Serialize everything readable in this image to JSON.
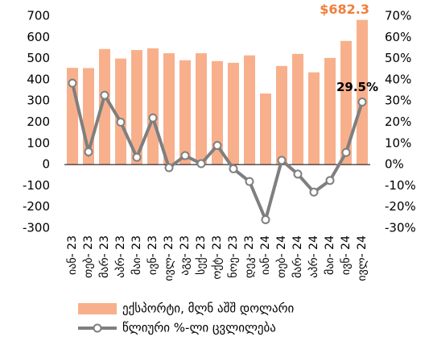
{
  "chart_data": {
    "type": "bar-line",
    "categories": [
      "იან- 23",
      "თებ- 23",
      "მარ- 23",
      "აპრ- 23",
      "მაი- 23",
      "ივნ- 23",
      "ივლ- 23",
      "აგვ- 23",
      "სექ- 23",
      "ოქტ- 23",
      "ნოე- 23",
      "დეკ- 23",
      "იან- 24",
      "თებ- 24",
      "მარ- 24",
      "აპრ- 24",
      "მაი- 24",
      "ივნ- 24",
      "ივლ- 24"
    ],
    "series": [
      {
        "name": "ექსპორტი, მლნ აშშ დოლარი",
        "type": "bar",
        "color": "#f8b08c",
        "values": [
          456,
          455,
          545,
          500,
          540,
          548,
          525,
          492,
          525,
          488,
          480,
          515,
          335,
          465,
          522,
          435,
          503,
          583,
          682.3
        ],
        "value_labels": [
          null,
          null,
          null,
          null,
          null,
          null,
          null,
          null,
          null,
          null,
          null,
          null,
          null,
          null,
          null,
          null,
          null,
          null,
          "$682.3"
        ],
        "label_color": "#f07f3c"
      },
      {
        "name": "წლიური %-ლი ცვლილება",
        "type": "line",
        "axis": "y2",
        "color": "#7f7f7f",
        "values": [
          38.4,
          6,
          32.7,
          20,
          3.4,
          22,
          -1.5,
          4.2,
          0.4,
          9,
          -2,
          -8,
          -26,
          2,
          -4.5,
          -13,
          -7.5,
          5.7,
          29.5
        ],
        "value_labels": [
          null,
          null,
          null,
          null,
          null,
          null,
          null,
          null,
          null,
          null,
          null,
          null,
          null,
          null,
          null,
          null,
          null,
          null,
          "29.5%"
        ],
        "label_color": "#000000"
      }
    ],
    "ylim": [
      -300,
      700
    ],
    "yticks": [
      -300,
      -200,
      -100,
      0,
      100,
      200,
      300,
      400,
      500,
      600,
      700
    ],
    "y2lim": [
      -30,
      70
    ],
    "y2ticks": [
      {
        "value": -30,
        "label": "-30%"
      },
      {
        "value": -20,
        "label": "-20%"
      },
      {
        "value": -10,
        "label": "-10%"
      },
      {
        "value": 0,
        "label": "0%"
      },
      {
        "value": 10,
        "label": "10%"
      },
      {
        "value": 20,
        "label": "20%"
      },
      {
        "value": 30,
        "label": "30%"
      },
      {
        "value": 40,
        "label": "40%"
      },
      {
        "value": 50,
        "label": "50%"
      },
      {
        "value": 60,
        "label": "60%"
      },
      {
        "value": 70,
        "label": "70%"
      }
    ]
  }
}
